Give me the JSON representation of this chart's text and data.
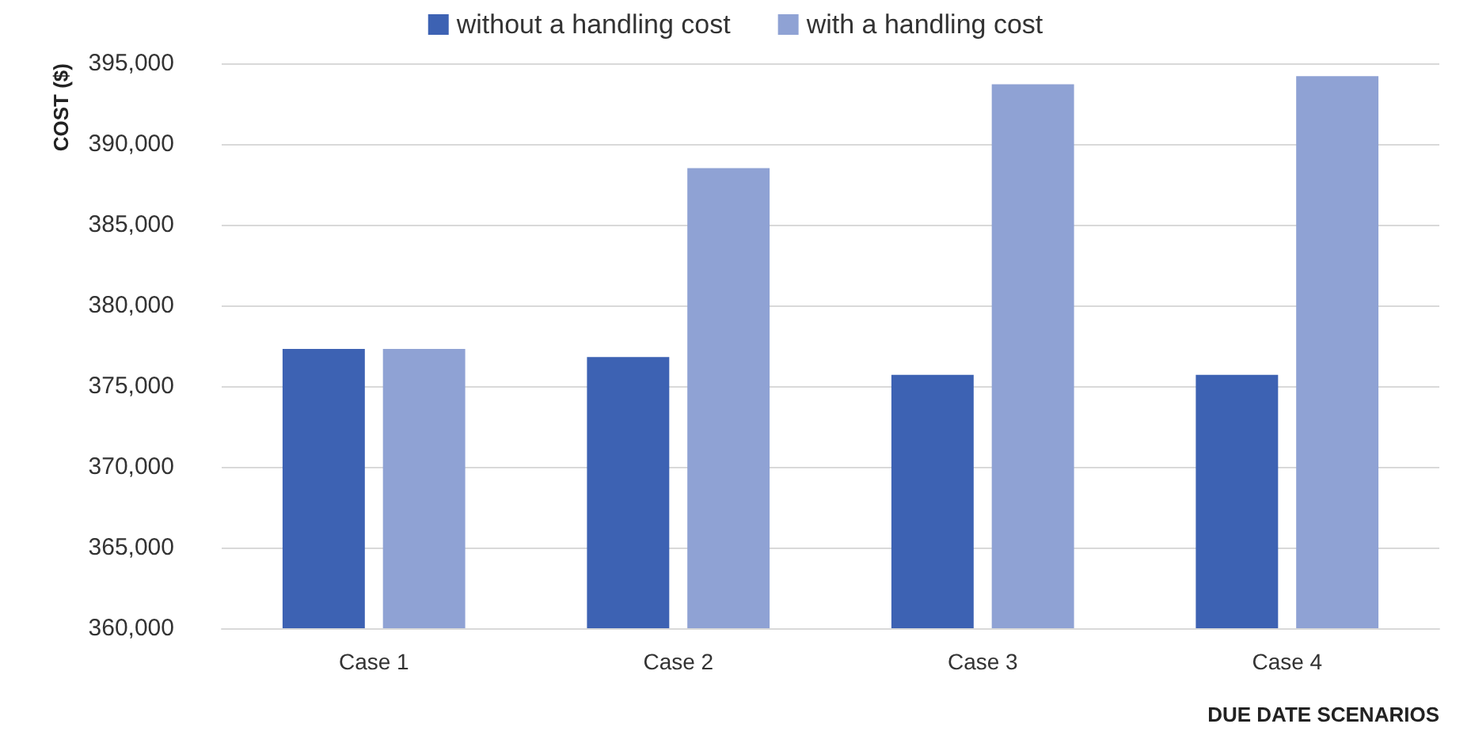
{
  "chart_data": {
    "type": "bar",
    "xlabel": "DUE DATE SCENARIOS",
    "ylabel": "COST ($)",
    "categories": [
      "Case 1",
      "Case 2",
      "Case 3",
      "Case 4"
    ],
    "series": [
      {
        "name": "without a handling cost",
        "color": "#3d62b3",
        "values": [
          377300,
          376800,
          375700,
          375700
        ]
      },
      {
        "name": "with a handling cost",
        "color": "#8fa2d4",
        "values": [
          377300,
          388500,
          393700,
          394200
        ]
      }
    ],
    "ylim": [
      360000,
      395000
    ],
    "yticks": [
      {
        "value": 360000,
        "label": "360,000"
      },
      {
        "value": 365000,
        "label": "365,000"
      },
      {
        "value": 370000,
        "label": "370,000"
      },
      {
        "value": 375000,
        "label": "375,000"
      },
      {
        "value": 380000,
        "label": "380,000"
      },
      {
        "value": 385000,
        "label": "385,000"
      },
      {
        "value": 390000,
        "label": "390,000"
      },
      {
        "value": 395000,
        "label": "395,000"
      }
    ],
    "grid": "y",
    "legend": "top"
  }
}
